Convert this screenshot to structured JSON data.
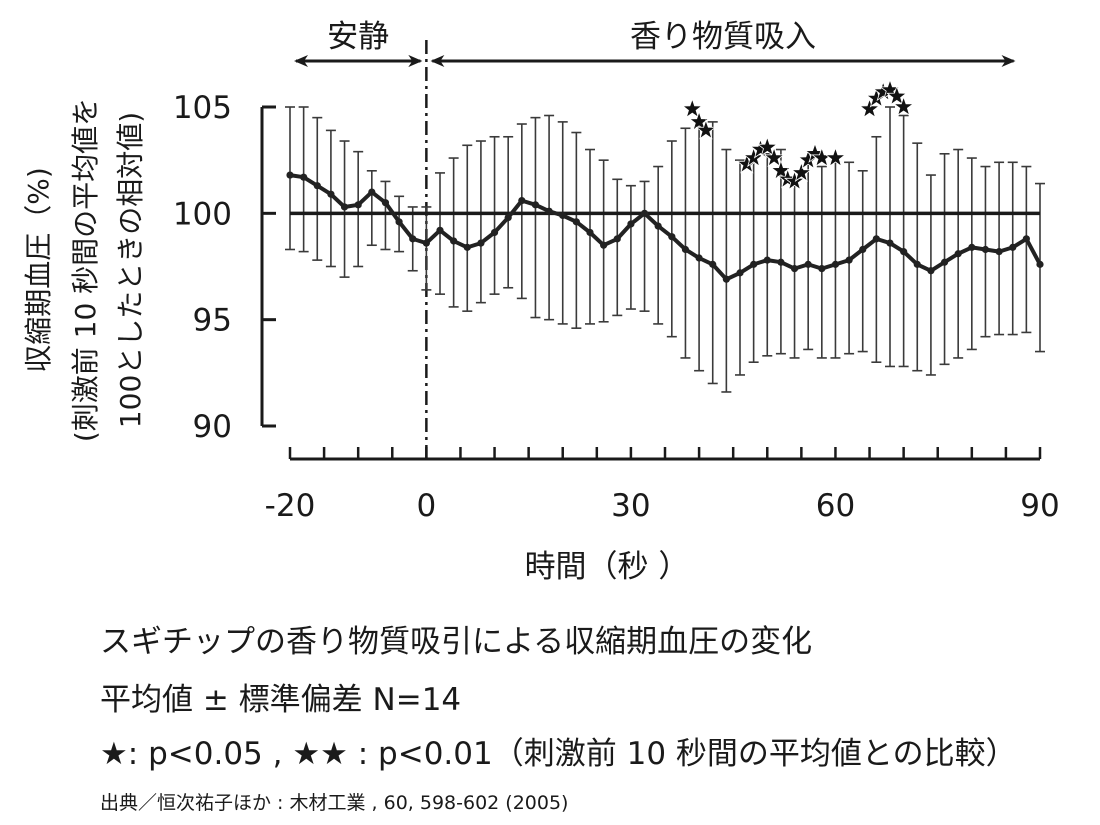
{
  "chart_data": {
    "type": "line",
    "xlabel": "時間（秒 ）",
    "ylabel_lines": [
      "収縮期血圧（%)",
      "(刺激前 10 秒間の平均値を",
      "100としたときの相対値)"
    ],
    "x_ticks": [
      "-20",
      "0",
      "30",
      "60",
      "90"
    ],
    "x_tick_values": [
      -20,
      0,
      30,
      60,
      90
    ],
    "y_ticks": [
      "90",
      "95",
      "100",
      "105"
    ],
    "y_tick_values": [
      90,
      95,
      100,
      105
    ],
    "xlim": [
      -20,
      90
    ],
    "ylim": [
      90,
      105
    ],
    "reference_line": 100,
    "stimulus_onset_x": 0,
    "phases": [
      {
        "label": "安静",
        "from": -20,
        "to": 0
      },
      {
        "label": "香り物質吸入",
        "from": 0,
        "to": 87
      }
    ],
    "series": [
      {
        "x": [
          -20,
          -18,
          -16,
          -14,
          -12,
          -10,
          -8,
          -6,
          -4,
          -2,
          0,
          2,
          4,
          6,
          8,
          10,
          12,
          14,
          16,
          18,
          20,
          22,
          24,
          26,
          28,
          30,
          32,
          34,
          36,
          38,
          40,
          42,
          44,
          46,
          48,
          50,
          52,
          54,
          56,
          58,
          60,
          62,
          64,
          66,
          68,
          70,
          72,
          74,
          76,
          78,
          80,
          82,
          84,
          86,
          88,
          90
        ],
        "values": [
          101.8,
          101.7,
          101.3,
          100.9,
          100.3,
          100.4,
          101.0,
          100.5,
          99.6,
          98.8,
          98.6,
          99.2,
          98.7,
          98.4,
          98.6,
          99.1,
          99.8,
          100.6,
          100.4,
          100.1,
          99.9,
          99.6,
          99.1,
          98.5,
          98.8,
          99.5,
          100.0,
          99.4,
          98.9,
          98.3,
          97.9,
          97.6,
          96.9,
          97.2,
          97.6,
          97.8,
          97.7,
          97.4,
          97.6,
          97.4,
          97.6,
          97.8,
          98.3,
          98.8,
          98.6,
          98.2,
          97.6,
          97.3,
          97.7,
          98.1,
          98.4,
          98.3,
          98.2,
          98.4,
          98.8,
          97.6
        ],
        "sd_upper": [
          105.0,
          105.0,
          104.5,
          103.9,
          103.4,
          102.9,
          102.0,
          101.5,
          100.8,
          100.3,
          100.3,
          101.9,
          102.6,
          103.2,
          103.4,
          103.6,
          103.6,
          104.2,
          104.5,
          104.6,
          104.3,
          103.8,
          103.0,
          102.5,
          101.6,
          101.3,
          101.5,
          102.2,
          103.4,
          104.0,
          104.4,
          104.3,
          103.0,
          102.5,
          102.4,
          102.8,
          103.0,
          101.3,
          102.5,
          102.2,
          102.4,
          102.4,
          102.0,
          103.6,
          105.0,
          104.6,
          103.3,
          101.8,
          102.8,
          103.0,
          102.6,
          102.2,
          102.4,
          102.4,
          102.2,
          101.4
        ],
        "sd_lower": [
          98.3,
          98.2,
          97.8,
          97.5,
          97.0,
          97.5,
          98.5,
          98.3,
          98.2,
          97.3,
          96.4,
          96.2,
          95.6,
          95.4,
          95.8,
          96.2,
          96.5,
          96.0,
          95.1,
          95.0,
          94.8,
          94.6,
          94.8,
          94.9,
          95.2,
          95.5,
          95.4,
          94.8,
          94.2,
          93.2,
          92.6,
          92.0,
          91.6,
          92.4,
          93.0,
          93.3,
          93.4,
          93.2,
          93.6,
          93.2,
          93.2,
          93.4,
          93.5,
          93.0,
          92.8,
          92.8,
          92.6,
          92.4,
          92.9,
          93.2,
          93.6,
          94.2,
          94.3,
          94.3,
          94.4,
          93.5
        ],
        "marker": "dot",
        "color": "#222222"
      }
    ],
    "significance_stars": [
      {
        "x": 39,
        "y": 104.9
      },
      {
        "x": 40,
        "y": 104.3
      },
      {
        "x": 41,
        "y": 103.9
      },
      {
        "x": 47,
        "y": 102.3
      },
      {
        "x": 48,
        "y": 102.6
      },
      {
        "x": 49,
        "y": 103.0
      },
      {
        "x": 50,
        "y": 103.1
      },
      {
        "x": 51,
        "y": 102.6
      },
      {
        "x": 52,
        "y": 102.0
      },
      {
        "x": 53,
        "y": 101.6
      },
      {
        "x": 54,
        "y": 101.5
      },
      {
        "x": 55,
        "y": 101.9
      },
      {
        "x": 56,
        "y": 102.5
      },
      {
        "x": 57,
        "y": 102.8
      },
      {
        "x": 58,
        "y": 102.6
      },
      {
        "x": 60,
        "y": 102.6
      },
      {
        "x": 65,
        "y": 104.9
      },
      {
        "x": 66,
        "y": 105.4
      },
      {
        "x": 67,
        "y": 105.7
      },
      {
        "x": 68,
        "y": 105.8
      },
      {
        "x": 69,
        "y": 105.5
      },
      {
        "x": 70,
        "y": 105.0
      }
    ]
  },
  "caption": {
    "line1": "スギチップの香り物質吸引による収縮期血圧の変化",
    "line2": "平均値 ± 標準偏差 N=14",
    "line3": "★: p<0.05 , ★★ : p<0.01（刺激前  10 秒間の平均値との比較）",
    "source": "出典／恒次祐子ほか : 木材工業 , 60, 598-602 (2005)"
  }
}
